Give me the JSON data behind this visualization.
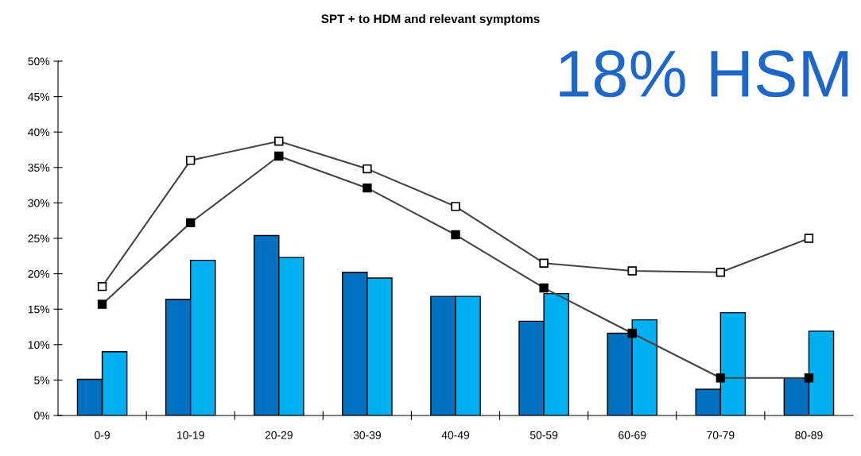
{
  "chart_data": {
    "type": "bar",
    "title": "SPT + to HDM and relevant symptoms",
    "categories": [
      "0-9",
      "10-19",
      "20-29",
      "30-39",
      "40-49",
      "50-59",
      "60-69",
      "70-79",
      "80-89"
    ],
    "series": [
      {
        "type": "bar",
        "color": "#0070c0",
        "values": [
          5.1,
          16.4,
          25.4,
          20.2,
          16.8,
          13.3,
          11.6,
          3.7,
          5.3
        ]
      },
      {
        "type": "bar",
        "color": "#00b0f0",
        "values": [
          9.0,
          21.9,
          22.3,
          19.4,
          16.8,
          17.2,
          13.5,
          14.5,
          11.9
        ]
      },
      {
        "type": "line",
        "color": "#ffffff",
        "values": [
          18.2,
          36.0,
          38.7,
          34.8,
          29.5,
          21.5,
          20.4,
          20.2,
          25.0
        ]
      },
      {
        "type": "line",
        "color": "#000000",
        "values": [
          15.7,
          27.2,
          36.6,
          32.1,
          25.5,
          18.0,
          11.6,
          5.3,
          5.3
        ]
      }
    ],
    "ylim": [
      0,
      50
    ],
    "yticks": [
      {
        "value": 0,
        "label": "0%"
      },
      {
        "value": 5,
        "label": "5%"
      },
      {
        "value": 10,
        "label": "10%"
      },
      {
        "value": 15,
        "label": "15%"
      },
      {
        "value": 20,
        "label": "20%"
      },
      {
        "value": 25,
        "label": "25%"
      },
      {
        "value": 30,
        "label": "30%"
      },
      {
        "value": 35,
        "label": "35%"
      },
      {
        "value": 40,
        "label": "40%"
      },
      {
        "value": 45,
        "label": "45%"
      },
      {
        "value": 50,
        "label": "50%"
      }
    ],
    "marker": "square",
    "grid": false,
    "legend": false,
    "annotations": [
      "18% HSM"
    ]
  }
}
